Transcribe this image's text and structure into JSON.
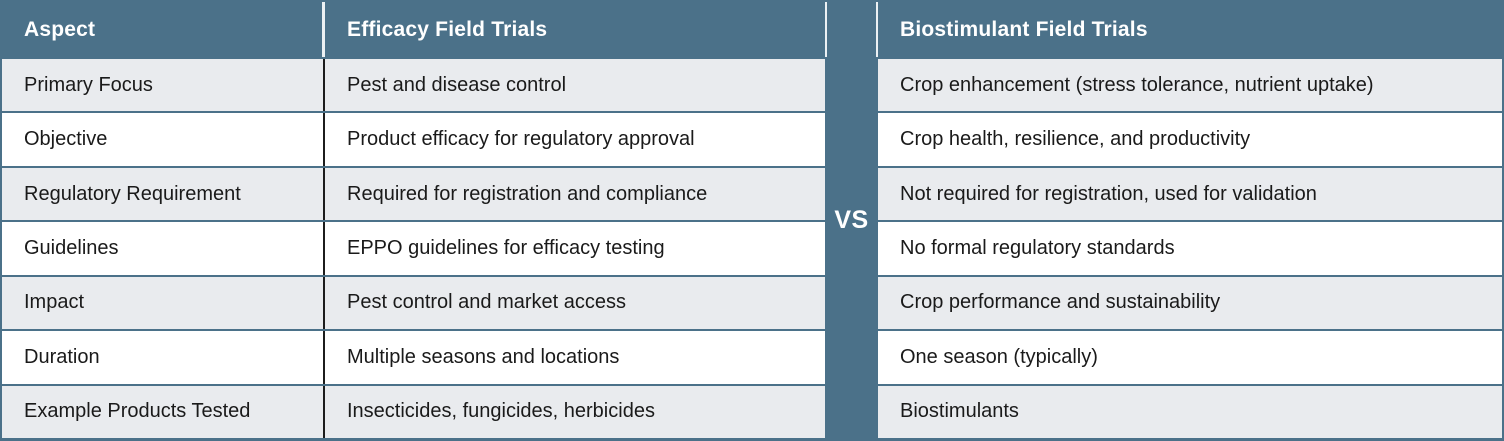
{
  "chart_data": {
    "type": "table",
    "title": "Efficacy Field Trials vs Biostimulant Field Trials comparison",
    "layout": "two side-by-side tables separated by a vertical VS band; header row dark slate with white bold text; body rows alternate light gray and white",
    "divider_label": "VS",
    "columns": [
      "Aspect",
      "Efficacy Field Trials",
      "Biostimulant Field Trials"
    ],
    "rows": [
      [
        "Primary Focus",
        "Pest and disease control",
        "Crop enhancement (stress tolerance, nutrient uptake)"
      ],
      [
        "Objective",
        "Product efficacy for regulatory approval",
        "Crop health, resilience, and productivity"
      ],
      [
        "Regulatory Requirement",
        "Required for registration and compliance",
        "Not required for registration, used for validation"
      ],
      [
        "Guidelines",
        "EPPO guidelines for efficacy testing",
        "No formal regulatory standards"
      ],
      [
        "Impact",
        "Pest control and market access",
        "Crop performance and sustainability"
      ],
      [
        "Duration",
        "Multiple seasons and locations",
        "One season (typically)"
      ],
      [
        "Example Products Tested",
        "Insecticides, fungicides, herbicides",
        "Biostimulants"
      ]
    ],
    "colors": {
      "header_bg": "#4B7189",
      "row_alt_bg": "#E9EBEE",
      "row_bg": "#FFFFFF",
      "header_text": "#FFFFFF",
      "body_text": "#1A1A1A",
      "body_column_divider": "#1C1C1C",
      "header_column_divider": "#ECF1F4"
    }
  }
}
